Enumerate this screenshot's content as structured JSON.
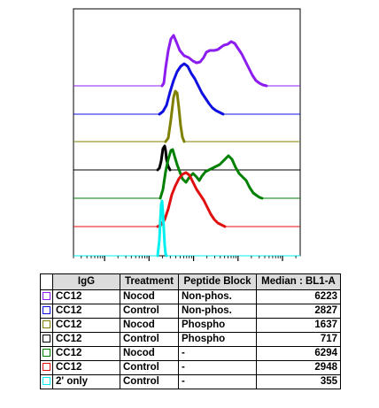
{
  "chart_data": {
    "type": "line",
    "subtype": "offset-histogram-overlay",
    "x_scale": "log",
    "grid": false,
    "title": "",
    "xlabel": "",
    "ylabel": "",
    "columns": [
      "IgG",
      "Treatment",
      "Peptide Block",
      "Median : BL1-A"
    ],
    "series": [
      {
        "igg": "CC12",
        "treatment": "Nocod",
        "peptide_block": "Non-phos.",
        "median": "6223",
        "color": "#8c1cf0",
        "shape": "bimodal-purple"
      },
      {
        "igg": "CC12",
        "treatment": "Control",
        "peptide_block": "Non-phos.",
        "median": "2827",
        "color": "#1010e0",
        "shape": "broad-blue"
      },
      {
        "igg": "CC12",
        "treatment": "Nocod",
        "peptide_block": "Phospho",
        "median": "1637",
        "color": "#808000",
        "shape": "narrow-olive"
      },
      {
        "igg": "CC12",
        "treatment": "Control",
        "peptide_block": "Phospho",
        "median": "717",
        "color": "#000000",
        "shape": "narrow-black"
      },
      {
        "igg": "CC12",
        "treatment": "Nocod",
        "peptide_block": "-",
        "median": "6294",
        "color": "#008000",
        "shape": "bimodal-green"
      },
      {
        "igg": "CC12",
        "treatment": "Control",
        "peptide_block": "-",
        "median": "2948",
        "color": "#e01010",
        "shape": "broad-red"
      },
      {
        "igg": "2' only",
        "treatment": "Control",
        "peptide_block": "-",
        "median": "355",
        "color": "#00f0f0",
        "shape": "narrow-cyan"
      }
    ]
  }
}
